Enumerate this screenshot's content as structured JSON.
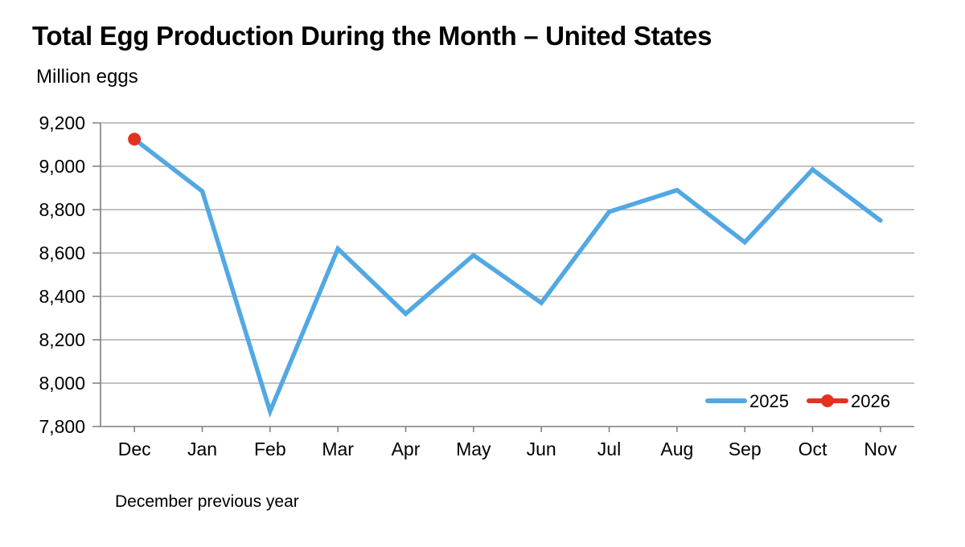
{
  "header": {
    "title": "Total Egg Production During the Month – United States",
    "y_axis_unit_label": "Million eggs"
  },
  "footnote": "December previous year",
  "colors": {
    "background": "#ffffff",
    "text": "#000000",
    "gridline": "#9e9e9e",
    "axis": "#7d7d7d",
    "series_2025": "#52a8e3",
    "series_2026": "#e33221"
  },
  "chart_data": {
    "type": "line",
    "title": "Total Egg Production During the Month – United States",
    "ylabel": "Million eggs",
    "xlabel": "",
    "x_note": "December previous year",
    "categories": [
      "Dec",
      "Jan",
      "Feb",
      "Mar",
      "Apr",
      "May",
      "Jun",
      "Jul",
      "Aug",
      "Sep",
      "Oct",
      "Nov"
    ],
    "series": [
      {
        "name": "2025",
        "style": "line",
        "color": "#52a8e3",
        "values": [
          9125,
          8885,
          7870,
          8620,
          8320,
          8590,
          8370,
          8790,
          8890,
          8650,
          8985,
          8750
        ]
      },
      {
        "name": "2026",
        "style": "point",
        "color": "#e33221",
        "values": [
          9125,
          null,
          null,
          null,
          null,
          null,
          null,
          null,
          null,
          null,
          null,
          null
        ]
      }
    ],
    "ylim": [
      7800,
      9200
    ],
    "ytick_step": 200,
    "yticks": [
      7800,
      8000,
      8200,
      8400,
      8600,
      8800,
      9000,
      9200
    ],
    "yticklabels": [
      "7,800",
      "8,000",
      "8,200",
      "8,400",
      "8,600",
      "8,800",
      "9,000",
      "9,200"
    ],
    "grid": true,
    "legend_position": "inside-bottom-right"
  }
}
